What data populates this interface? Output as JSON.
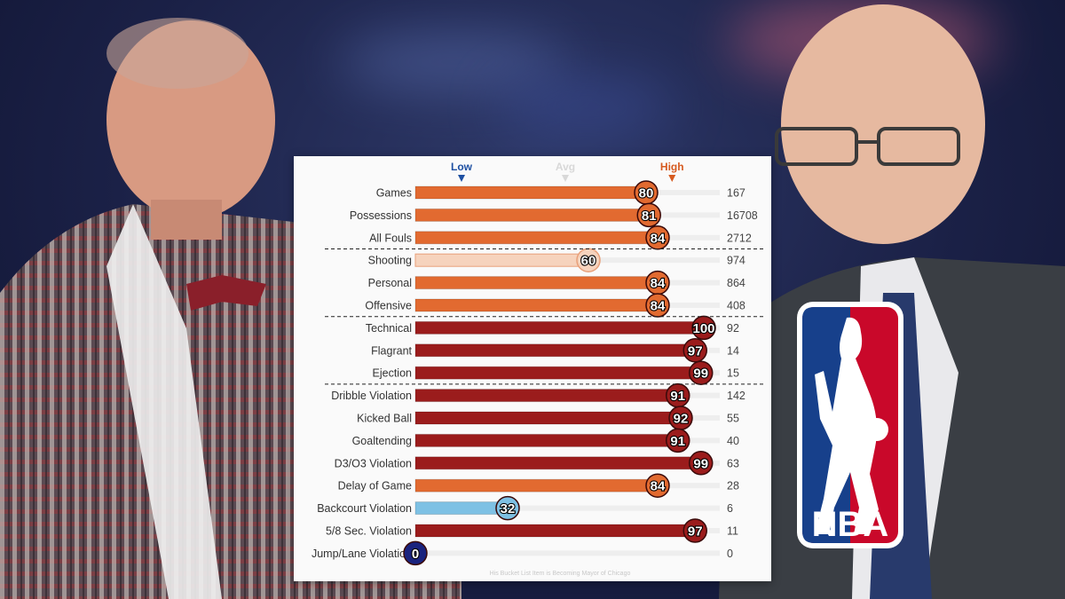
{
  "colors": {
    "high": "#e26a30",
    "very_high": "#9b1c1c",
    "avg": "#f6d3bd",
    "low": "#7ec1e4",
    "very_low": "#1a237e",
    "legend_low": "#1e50a2",
    "legend_avg": "#d8d8d8",
    "legend_high": "#d65a1f"
  },
  "chart_data": {
    "type": "bar",
    "orientation": "horizontal",
    "xlim": [
      0,
      100
    ],
    "legend": {
      "low": "Low",
      "avg": "Avg",
      "high": "High",
      "placement": "top"
    },
    "footnote": "His Bucket List Item is Becoming Mayor of Chicago",
    "rows": [
      {
        "label": "Games",
        "percentile": 80,
        "count": "167",
        "level": "high"
      },
      {
        "label": "Possessions",
        "percentile": 81,
        "count": "16708",
        "level": "high"
      },
      {
        "label": "All Fouls",
        "percentile": 84,
        "count": "2712",
        "level": "high"
      },
      {
        "label": "Shooting",
        "percentile": 60,
        "count": "974",
        "level": "avg"
      },
      {
        "label": "Personal",
        "percentile": 84,
        "count": "864",
        "level": "high"
      },
      {
        "label": "Offensive",
        "percentile": 84,
        "count": "408",
        "level": "high"
      },
      {
        "label": "Technical",
        "percentile": 100,
        "count": "92",
        "level": "very_high"
      },
      {
        "label": "Flagrant",
        "percentile": 97,
        "count": "14",
        "level": "very_high"
      },
      {
        "label": "Ejection",
        "percentile": 99,
        "count": "15",
        "level": "very_high"
      },
      {
        "label": "Dribble Violation",
        "percentile": 91,
        "count": "142",
        "level": "very_high"
      },
      {
        "label": "Kicked Ball",
        "percentile": 92,
        "count": "55",
        "level": "very_high"
      },
      {
        "label": "Goaltending",
        "percentile": 91,
        "count": "40",
        "level": "very_high"
      },
      {
        "label": "D3/O3 Violation",
        "percentile": 99,
        "count": "63",
        "level": "very_high"
      },
      {
        "label": "Delay of Game",
        "percentile": 84,
        "count": "28",
        "level": "high"
      },
      {
        "label": "Backcourt Violation",
        "percentile": 32,
        "count": "6",
        "level": "low"
      },
      {
        "label": "5/8 Sec. Violation",
        "percentile": 97,
        "count": "11",
        "level": "very_high"
      },
      {
        "label": "Jump/Lane Violation",
        "percentile": 0,
        "count": "0",
        "level": "very_low"
      }
    ],
    "dividers_after": [
      2,
      5,
      8
    ]
  },
  "logo": {
    "text": "NBA"
  }
}
